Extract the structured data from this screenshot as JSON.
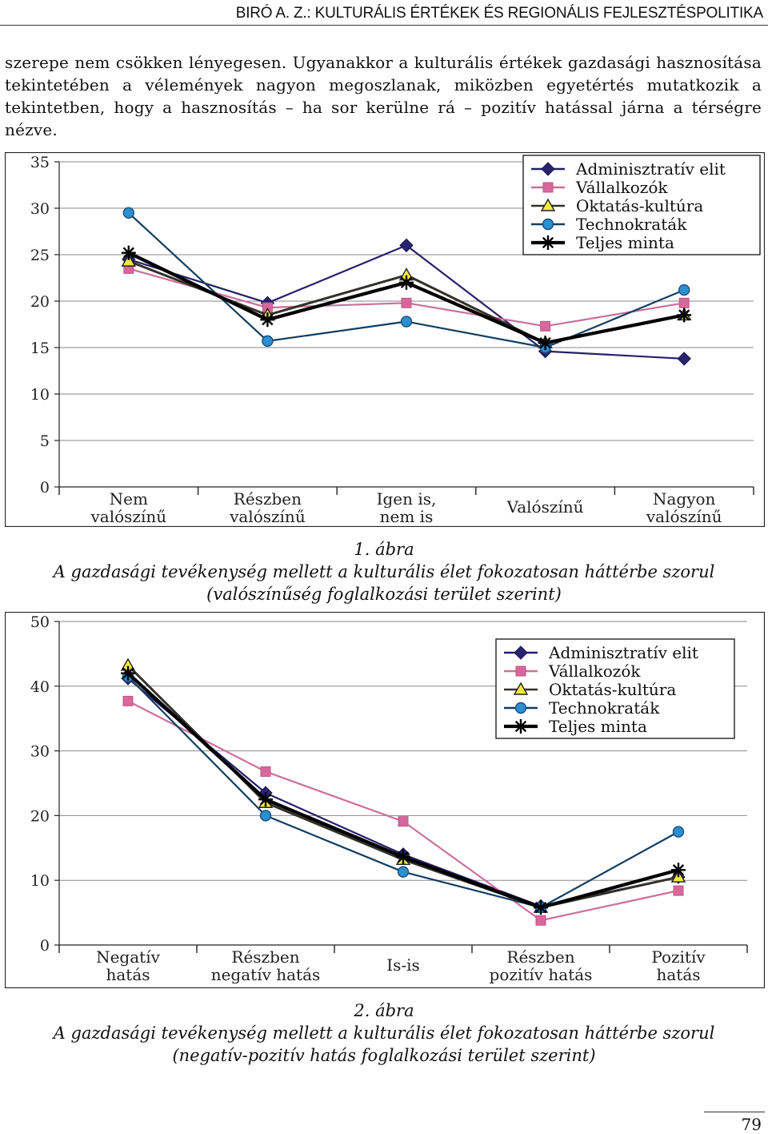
{
  "header": {
    "running_title": "BIRÓ A. Z.: KULTURÁLIS ÉRTÉKEK ÉS REGIONÁLIS FEJLESZTÉSPOLITIKA"
  },
  "body": {
    "paragraph": "szerepe nem csökken lényegesen. Ugyanakkor a kulturális értékek gazdasági hasznosítása tekintetében a vélemények nagyon megoszlanak, miközben egyetértés mutatkozik a tekintetben, hogy a hasznosítás – ha sor kerülne rá – pozitív hatással járna a térségre nézve."
  },
  "figures": [
    {
      "number": "1. ábra",
      "caption_line1": "A gazdasági tevékenység mellett a kulturális élet fokozatosan háttérbe szorul",
      "caption_line2": "(valószínűség foglalkozási terület szerint)"
    },
    {
      "number": "2. ábra",
      "caption_line1": "A gazdasági tevékenység mellett a kulturális élet fokozatosan háttérbe szorul",
      "caption_line2": "(negatív-pozitív hatás foglalkozási terület szerint)"
    }
  ],
  "page_number": "79",
  "chart_data": [
    {
      "type": "line",
      "categories": [
        [
          "Nem",
          "valószínű"
        ],
        [
          "Részben",
          "valószínű"
        ],
        [
          "Igen is,",
          "nem is"
        ],
        [
          "Valószínű"
        ],
        [
          "Nagyon",
          "valószínű"
        ]
      ],
      "ylim": [
        0,
        35
      ],
      "yticks": [
        0,
        5,
        10,
        15,
        20,
        25,
        30,
        35
      ],
      "grid": true,
      "legend_position": "top-right",
      "series": [
        {
          "name": "Adminisztratív elit",
          "color": "#26206a",
          "marker": "diamond",
          "values": [
            24.5,
            19.8,
            26.0,
            14.6,
            13.8
          ]
        },
        {
          "name": "Vállalkozók",
          "color": "#cc6f9c",
          "marker": "square",
          "values": [
            23.5,
            19.3,
            19.8,
            17.3,
            19.8
          ]
        },
        {
          "name": "Oktatás-kultúra",
          "color": "#33312a",
          "marker": "triangle",
          "values": [
            24.3,
            18.5,
            22.8,
            15.5,
            18.5
          ]
        },
        {
          "name": "Technokraták",
          "color": "#123e62",
          "marker": "circle",
          "values": [
            29.5,
            15.7,
            17.8,
            15.0,
            21.2
          ]
        },
        {
          "name": "Teljes minta",
          "color": "#000000",
          "marker": "star",
          "values": [
            25.2,
            18.0,
            22.0,
            15.5,
            18.5
          ]
        }
      ]
    },
    {
      "type": "line",
      "categories": [
        [
          "Negatív",
          "hatás"
        ],
        [
          "Részben",
          "negatív hatás"
        ],
        [
          "Is-is"
        ],
        [
          "Részben",
          "pozitív hatás"
        ],
        [
          "Pozitív",
          "hatás"
        ]
      ],
      "ylim": [
        0,
        50
      ],
      "yticks": [
        0,
        10,
        20,
        30,
        40,
        50
      ],
      "grid": true,
      "legend_position": "top-right",
      "series": [
        {
          "name": "Adminisztratív elit",
          "color": "#26206a",
          "marker": "diamond",
          "values": [
            41.2,
            23.5,
            14.0,
            6.0,
            10.5
          ]
        },
        {
          "name": "Vállalkozók",
          "color": "#cc6f9c",
          "marker": "square",
          "values": [
            37.7,
            26.8,
            19.1,
            3.8,
            8.4
          ]
        },
        {
          "name": "Oktatás-kultúra",
          "color": "#33312a",
          "marker": "triangle",
          "values": [
            43.2,
            22.0,
            13.2,
            5.8,
            10.5
          ]
        },
        {
          "name": "Technokraták",
          "color": "#123e62",
          "marker": "circle",
          "values": [
            41.5,
            20.0,
            11.3,
            5.8,
            17.5
          ]
        },
        {
          "name": "Teljes minta",
          "color": "#000000",
          "marker": "star",
          "values": [
            42.0,
            22.5,
            13.6,
            5.8,
            11.6
          ]
        }
      ]
    }
  ]
}
